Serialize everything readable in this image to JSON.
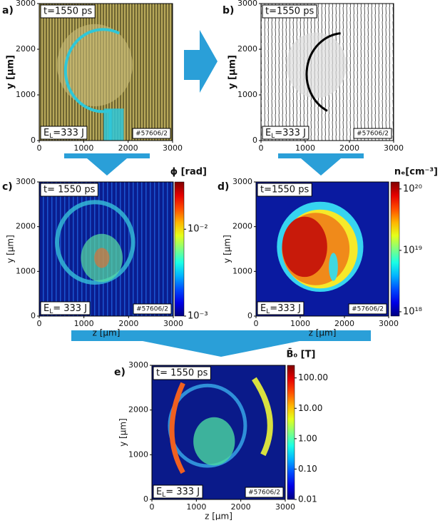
{
  "chart_data": [
    {
      "type": "image",
      "panel": "a)",
      "ylabel": "y [μm]",
      "xlim": [
        0,
        3000
      ],
      "ylim": [
        0,
        3000
      ],
      "xticks": [
        0,
        1000,
        2000,
        3000
      ],
      "yticks": [
        0,
        1000,
        2000,
        3000
      ],
      "time_label": "t=1550 ps",
      "energy_label": {
        "base": "E",
        "sub": "L",
        "rest": "=333 J"
      },
      "shot_label": "#57606/2",
      "style": "interferogram-color"
    },
    {
      "type": "image",
      "panel": "b)",
      "ylabel": "y [μm]",
      "xlim": [
        0,
        3000
      ],
      "ylim": [
        0,
        3000
      ],
      "xticks": [
        0,
        1000,
        2000,
        3000
      ],
      "yticks": [
        0,
        1000,
        2000,
        3000
      ],
      "time_label": "t=1550 ps",
      "energy_label": {
        "base": "E",
        "sub": "L",
        "rest": "=333 J"
      },
      "shot_label": "#57606/2",
      "style": "interferogram-gray"
    },
    {
      "type": "heatmap",
      "panel": "c)",
      "ylabel": "y [μm]",
      "xlabel": "z [μm]",
      "xlim": [
        0,
        3000
      ],
      "ylim": [
        0,
        3000
      ],
      "xticks": [
        0,
        1000,
        2000,
        3000
      ],
      "yticks": [
        0,
        1000,
        2000,
        3000
      ],
      "time_label": "t= 1550 ps",
      "energy_label": {
        "base": "E",
        "sub": "L",
        "rest": "= 333 J"
      },
      "shot_label": "#57606/2",
      "style": "phase",
      "colorbar": {
        "label": "ϕ [rad]",
        "colormap": "jet",
        "log": true,
        "lim": [
          0.001,
          0.035
        ],
        "ticks": [
          {
            "value": 0.01,
            "label": "10⁻²"
          },
          {
            "value": 0.001,
            "label": "10⁻³"
          }
        ]
      }
    },
    {
      "type": "heatmap",
      "panel": "d)",
      "ylabel": "y [μm]",
      "xlabel": "z [μm]",
      "xlim": [
        0,
        3000
      ],
      "ylim": [
        0,
        3000
      ],
      "xticks": [
        0,
        1000,
        2000,
        3000
      ],
      "yticks": [
        0,
        1000,
        2000,
        3000
      ],
      "time_label": "t=1550 ps",
      "energy_label": {
        "base": "E",
        "sub": "L",
        "rest": "=333 J"
      },
      "shot_label": "#57606/2",
      "style": "density",
      "colorbar": {
        "label": "nₑ[cm⁻³]",
        "colormap": "jet",
        "log": true,
        "lim": [
          8.5e+17,
          1.3e+20
        ],
        "ticks": [
          {
            "value": 1e+20,
            "label": "10²⁰"
          },
          {
            "value": 1e+19,
            "label": "10¹⁹"
          },
          {
            "value": 1e+18,
            "label": "10¹⁸"
          }
        ]
      }
    },
    {
      "type": "heatmap",
      "panel": "e)",
      "ylabel": "y [μm]",
      "xlabel": "z [μm]",
      "xlim": [
        0,
        3000
      ],
      "ylim": [
        0,
        3000
      ],
      "xticks": [
        0,
        1000,
        2000,
        3000
      ],
      "yticks": [
        0,
        1000,
        2000,
        3000
      ],
      "time_label": "t= 1550 ps",
      "energy_label": {
        "base": "E",
        "sub": "L",
        "rest": "= 333 J"
      },
      "shot_label": "#57606/2",
      "style": "field",
      "colorbar": {
        "label": "B̄₀ [T]",
        "colormap": "jet",
        "log": true,
        "lim": [
          0.01,
          260
        ],
        "ticks": [
          {
            "value": 100,
            "label": "100.00"
          },
          {
            "value": 10,
            "label": "10.00"
          },
          {
            "value": 1,
            "label": "1.00"
          },
          {
            "value": 0.1,
            "label": "0.10"
          },
          {
            "value": 0.01,
            "label": "0.01"
          }
        ]
      }
    }
  ]
}
